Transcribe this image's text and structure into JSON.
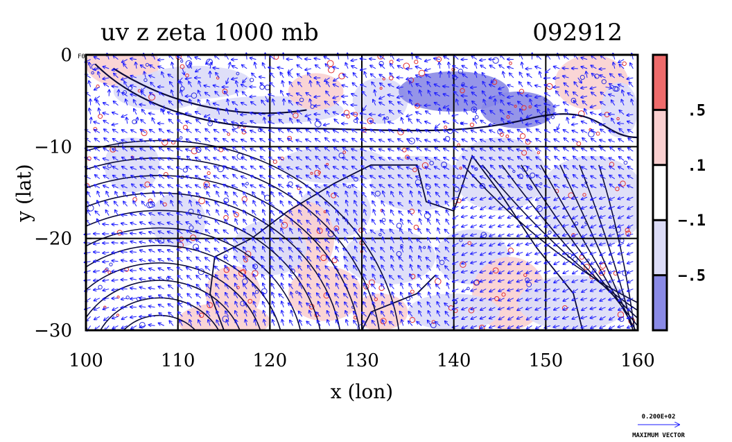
{
  "chart_data": {
    "type": "heatmap",
    "title": "uv z zeta 1000 mb",
    "date_label": "092912",
    "xlabel": "x (lon)",
    "ylabel": "y (lat)",
    "xlim": [
      100,
      160
    ],
    "ylim": [
      -30,
      0
    ],
    "x_ticks": [
      "100",
      "110",
      "120",
      "130",
      "140",
      "150",
      "160"
    ],
    "x_tick_values": [
      100,
      110,
      120,
      130,
      140,
      150,
      160
    ],
    "y_ticks": [
      "0",
      "−10",
      "−20",
      "−30"
    ],
    "y_tick_values": [
      0,
      -10,
      -20,
      -30
    ],
    "grid": true,
    "grid_x": [
      110,
      120,
      130,
      140,
      150
    ],
    "grid_y": [
      -10,
      -20
    ],
    "colorbar": {
      "labels": [
        ".5",
        ".1",
        "−.1",
        "−.5"
      ],
      "boundaries": [
        0.5,
        0.1,
        -0.1,
        -0.5
      ],
      "colors": [
        "#ee6b6b",
        "#fad0d0",
        "#ffffff",
        "#dcdcf7",
        "#8a8ae6"
      ]
    },
    "fill_colors": {
      "strong_positive": "#ee6b6b",
      "weak_positive": "#fad0d0",
      "weak_negative": "#dcdcf7",
      "strong_negative": "#8a8ae6"
    },
    "vector_color": "#1a1aff",
    "contour_color": "#0a0a3a",
    "corner_label": "F0",
    "reference_vector": {
      "value_label": "0.200E+02",
      "caption": "MAXIMUM VECTOR"
    }
  }
}
